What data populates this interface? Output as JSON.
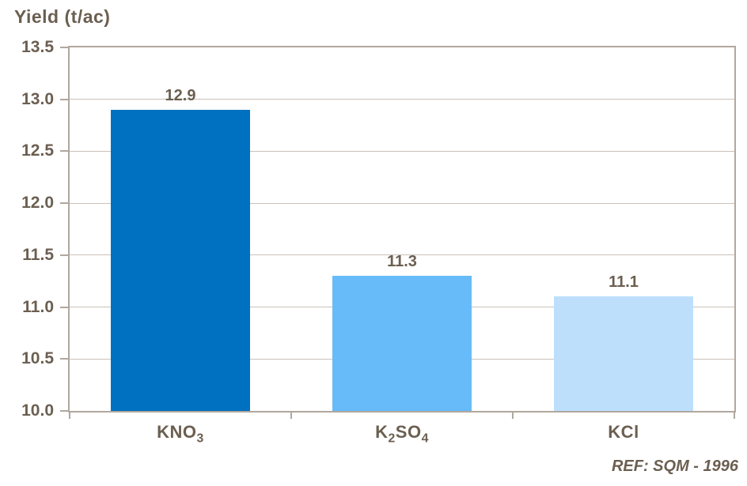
{
  "page": {
    "background": "#FFFFFF"
  },
  "chart_data": {
    "type": "bar",
    "title": "Yield (t/ac)",
    "categories": [
      {
        "plain": "KNO3",
        "parts": [
          [
            "KNO",
            false
          ],
          [
            "3",
            true
          ]
        ]
      },
      {
        "plain": "K2SO4",
        "parts": [
          [
            "K",
            false
          ],
          [
            "2",
            true
          ],
          [
            "SO",
            false
          ],
          [
            "4",
            true
          ]
        ]
      },
      {
        "plain": "KCl",
        "parts": [
          [
            "KCl",
            false
          ]
        ]
      }
    ],
    "values": [
      12.9,
      11.3,
      11.1
    ],
    "value_labels": [
      "12.9",
      "11.3",
      "11.1"
    ],
    "bar_colors": [
      "#0070C0",
      "#66BBF8",
      "#BDDFFB"
    ],
    "xlabel": "",
    "ylabel": "Yield (t/ac)",
    "ylim": [
      10.0,
      13.5
    ],
    "y_tick_step": 0.5,
    "y_ticks": [
      "13.5",
      "13.0",
      "12.5",
      "12.0",
      "11.5",
      "11.0",
      "10.5",
      "10.0"
    ],
    "grid": "horizontal",
    "legend": "none"
  },
  "footer": {
    "ref": "REF: SQM - 1996"
  },
  "colors": {
    "text": "#6B5F51",
    "axis": "#B0A79E",
    "grid": "#C9C1B8",
    "background": "#FFFFFF"
  }
}
